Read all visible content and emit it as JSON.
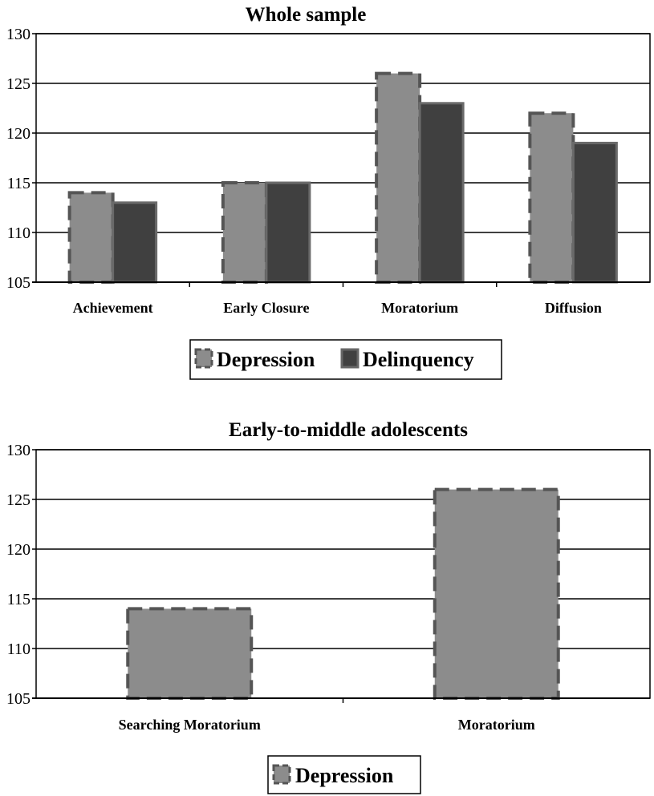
{
  "chart_data": [
    {
      "type": "bar",
      "title": "Whole sample",
      "categories": [
        "Achievement",
        "Early Closure",
        "Moratorium",
        "Diffusion"
      ],
      "series": [
        {
          "name": "Depression",
          "values": [
            114,
            115,
            126,
            122
          ],
          "color": "#8c8c8c",
          "border": "dashed"
        },
        {
          "name": "Delinquency",
          "values": [
            113,
            115,
            123,
            119
          ],
          "color": "#404040",
          "border": "solid"
        }
      ],
      "ylim": [
        105,
        130
      ],
      "yticks": [
        105,
        110,
        115,
        120,
        125,
        130
      ],
      "grid": true,
      "legend": "bottom-center",
      "xlabel": "",
      "ylabel": ""
    },
    {
      "type": "bar",
      "title": "Early-to-middle adolescents",
      "categories": [
        "Searching Moratorium",
        "Moratorium"
      ],
      "series": [
        {
          "name": "Depression",
          "values": [
            114,
            126
          ],
          "color": "#8c8c8c",
          "border": "dashed"
        }
      ],
      "ylim": [
        105,
        130
      ],
      "yticks": [
        105,
        110,
        115,
        120,
        125,
        130
      ],
      "grid": true,
      "legend": "bottom-center",
      "xlabel": "",
      "ylabel": ""
    }
  ]
}
